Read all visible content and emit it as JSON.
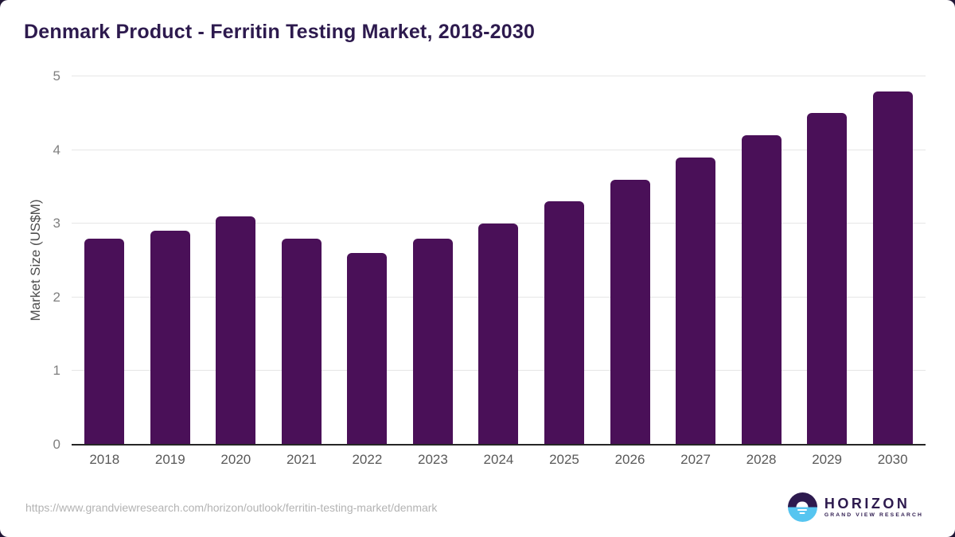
{
  "title": "Denmark Product - Ferritin Testing Market, 2018-2030",
  "chart_data": {
    "type": "bar",
    "categories": [
      "2018",
      "2019",
      "2020",
      "2021",
      "2022",
      "2023",
      "2024",
      "2025",
      "2026",
      "2027",
      "2028",
      "2029",
      "2030"
    ],
    "values": [
      2.8,
      2.9,
      3.1,
      2.8,
      2.6,
      2.8,
      3.0,
      3.3,
      3.6,
      3.9,
      4.2,
      4.5,
      4.8
    ],
    "title": "Denmark Product - Ferritin Testing Market, 2018-2030",
    "xlabel": "",
    "ylabel": "Market Size (US$M)",
    "ylim": [
      0,
      5
    ],
    "yticks": [
      0,
      1,
      2,
      3,
      4,
      5
    ],
    "grid": true,
    "legend": "none",
    "bar_color": "#4A1058"
  },
  "colors": {
    "bar": "#4A1058",
    "title_text": "#2D1A4E",
    "gridline": "#e6e6e6",
    "axis_line": "#262626",
    "logo_blue": "#56C5F0"
  },
  "footer": {
    "source_url": "https://www.grandviewresearch.com/horizon/outlook/ferritin-testing-market/denmark",
    "logo": {
      "brand": "HORIZON",
      "sub_brand": "GRAND VIEW RESEARCH"
    }
  }
}
